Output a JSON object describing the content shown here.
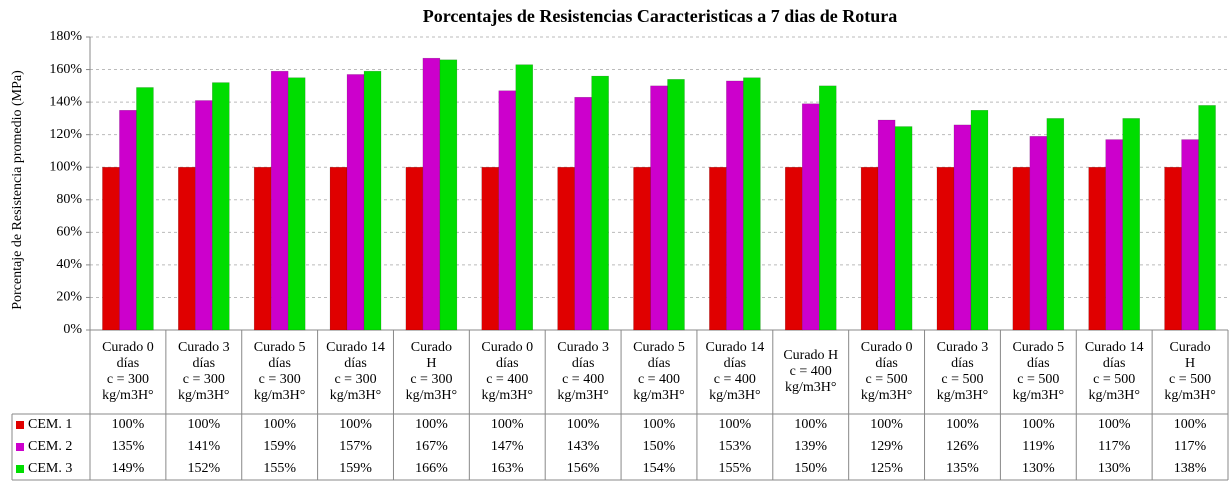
{
  "chart_data": {
    "type": "bar",
    "title": "Porcentajes de Resistencias Caracteristicas a 7 dias de Rotura",
    "y_label": "Porcentaje de Resistencia promedio (MPa)",
    "categories": [
      [
        "Curado 0",
        "días",
        "c = 300",
        "kg/m3H°"
      ],
      [
        "Curado 3",
        "días",
        "c = 300",
        "kg/m3H°"
      ],
      [
        "Curado 5",
        "días",
        "c = 300",
        "kg/m3H°"
      ],
      [
        "Curado 14",
        "días",
        "c = 300",
        "kg/m3H°"
      ],
      [
        "Curado",
        "H",
        "c = 300",
        "kg/m3H°"
      ],
      [
        "Curado 0",
        "días",
        "c = 400",
        "kg/m3H°"
      ],
      [
        "Curado 3",
        "días",
        "c = 400",
        "kg/m3H°"
      ],
      [
        "Curado 5",
        "días",
        "c = 400",
        "kg/m3H°"
      ],
      [
        "Curado 14",
        "días",
        "c = 400",
        "kg/m3H°"
      ],
      [
        "Curado H",
        "c = 400",
        "kg/m3H°"
      ],
      [
        "Curado 0",
        "días",
        "c = 500",
        "kg/m3H°"
      ],
      [
        "Curado 3",
        "días",
        "c = 500",
        "kg/m3H°"
      ],
      [
        "Curado 5",
        "días",
        "c = 500",
        "kg/m3H°"
      ],
      [
        "Curado 14",
        "días",
        "c = 500",
        "kg/m3H°"
      ],
      [
        "Curado",
        "H",
        "c = 500",
        "kg/m3H°"
      ]
    ],
    "series": [
      {
        "name": "CEM. 1",
        "color": "#e00000",
        "values": [
          100,
          100,
          100,
          100,
          100,
          100,
          100,
          100,
          100,
          100,
          100,
          100,
          100,
          100,
          100
        ],
        "value_labels": [
          "100%",
          "100%",
          "100%",
          "100%",
          "100%",
          "100%",
          "100%",
          "100%",
          "100%",
          "100%",
          "100%",
          "100%",
          "100%",
          "100%",
          "100%"
        ]
      },
      {
        "name": "CEM. 2",
        "color": "#cc00cc",
        "values": [
          135,
          141,
          159,
          157,
          167,
          147,
          143,
          150,
          153,
          139,
          129,
          126,
          119,
          117,
          117
        ],
        "value_labels": [
          "135%",
          "141%",
          "159%",
          "157%",
          "167%",
          "147%",
          "143%",
          "150%",
          "153%",
          "139%",
          "129%",
          "126%",
          "119%",
          "117%",
          "117%"
        ]
      },
      {
        "name": "CEM. 3",
        "color": "#00dd00",
        "values": [
          149,
          152,
          155,
          159,
          166,
          163,
          156,
          154,
          155,
          150,
          125,
          135,
          130,
          130,
          138
        ],
        "value_labels": [
          "149%",
          "152%",
          "155%",
          "159%",
          "166%",
          "163%",
          "156%",
          "154%",
          "155%",
          "150%",
          "125%",
          "135%",
          "130%",
          "130%",
          "138%"
        ]
      }
    ],
    "ylim": [
      0,
      180
    ],
    "yticks": [
      {
        "value": 0,
        "label": "0%"
      },
      {
        "value": 20,
        "label": "20%"
      },
      {
        "value": 40,
        "label": "40%"
      },
      {
        "value": 60,
        "label": "60%"
      },
      {
        "value": 80,
        "label": "80%"
      },
      {
        "value": 100,
        "label": "100%"
      },
      {
        "value": 120,
        "label": "120%"
      },
      {
        "value": 140,
        "label": "140%"
      },
      {
        "value": 160,
        "label": "160%"
      },
      {
        "value": 180,
        "label": "180%"
      }
    ],
    "grid": true
  }
}
